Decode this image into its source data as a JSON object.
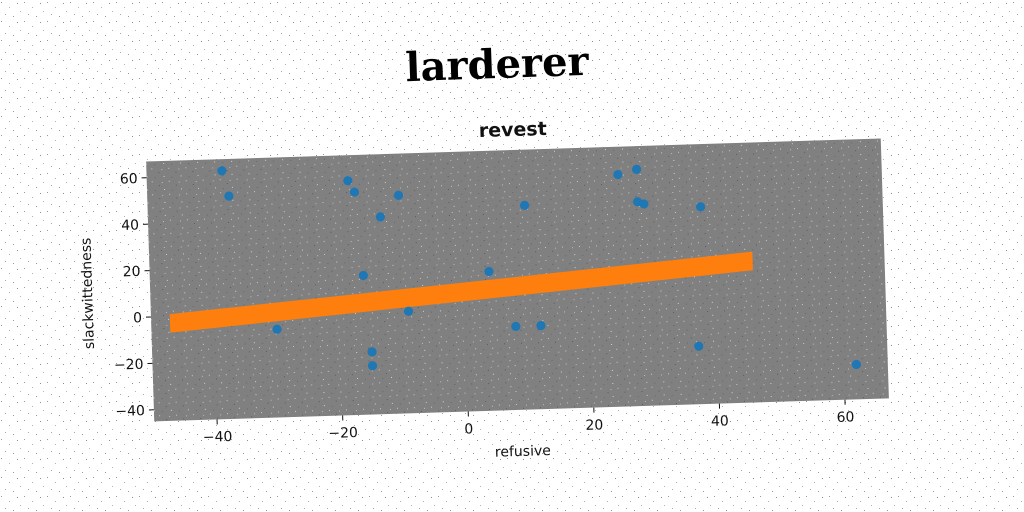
{
  "suptitle": "larderer",
  "chart_data": {
    "type": "scatter",
    "title": "revest",
    "xlabel": "refusive",
    "ylabel": "slackwittedness",
    "xlim": [
      -50,
      67
    ],
    "ylim": [
      -45,
      67
    ],
    "xticks": [
      -40,
      -20,
      0,
      20,
      40,
      60
    ],
    "yticks": [
      -40,
      -20,
      0,
      20,
      40,
      60
    ],
    "grid": false,
    "background_color": "#808080",
    "series": [
      {
        "kind": "scatter",
        "color": "#1f77b4",
        "points": [
          {
            "x": -38,
            "y": 62
          },
          {
            "x": -37,
            "y": 51
          },
          {
            "x": -30,
            "y": -7
          },
          {
            "x": -18,
            "y": 56
          },
          {
            "x": -17,
            "y": 51
          },
          {
            "x": -16,
            "y": 15
          },
          {
            "x": -15,
            "y": -18
          },
          {
            "x": -15,
            "y": -24
          },
          {
            "x": -13,
            "y": 40
          },
          {
            "x": -10,
            "y": 49
          },
          {
            "x": -9,
            "y": -1
          },
          {
            "x": 4,
            "y": 15
          },
          {
            "x": 8,
            "y": -9
          },
          {
            "x": 10,
            "y": 43
          },
          {
            "x": 12,
            "y": -9
          },
          {
            "x": 25,
            "y": 55
          },
          {
            "x": 28,
            "y": 57
          },
          {
            "x": 28,
            "y": 43
          },
          {
            "x": 29,
            "y": 42
          },
          {
            "x": 37,
            "y": -20
          },
          {
            "x": 38,
            "y": 40
          },
          {
            "x": 62,
            "y": -30
          }
        ]
      },
      {
        "kind": "band",
        "color": "#ff7f0e",
        "x": [
          -47,
          46
        ],
        "y_center": [
          -3,
          16
        ],
        "half_width": 4
      }
    ]
  }
}
